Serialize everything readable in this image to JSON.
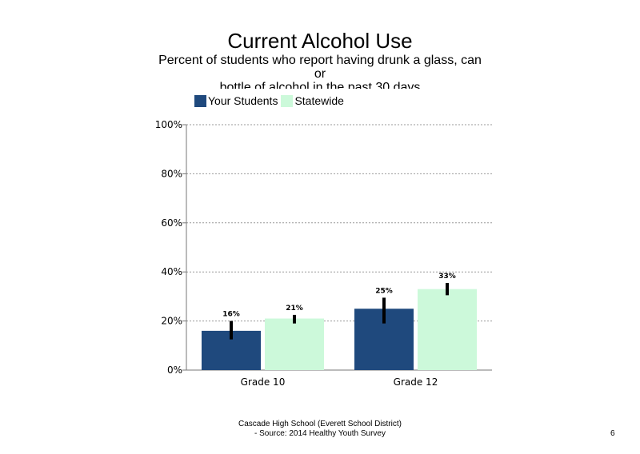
{
  "chart_data": {
    "type": "bar",
    "title": "Current Alcohol Use",
    "subtitle_lines": [
      "Percent of students  who report having drunk a glass, can",
      "or",
      "bottle  of alcohol  in the  past  30 days"
    ],
    "categories": [
      "Grade 10",
      "Grade 12"
    ],
    "series": [
      {
        "name": "Your Students",
        "color": "#1f497d",
        "values": [
          16,
          25
        ],
        "labels": [
          "16%",
          "25%"
        ],
        "error": [
          [
            12.5,
            20
          ],
          [
            19,
            29.5
          ]
        ]
      },
      {
        "name": "Statewide",
        "color": "#ccf9da",
        "values": [
          21,
          33
        ],
        "labels": [
          "21%",
          "33%"
        ],
        "error": [
          [
            19,
            22.5
          ],
          [
            30.5,
            35.5
          ]
        ]
      }
    ],
    "ylim": [
      0,
      100
    ],
    "yticks": [
      "0%",
      "20%",
      "40%",
      "60%",
      "80%",
      "100%"
    ],
    "grid": true,
    "legend": "top"
  },
  "footer": {
    "line1": "Cascade High  School  (Everett School District)",
    "line2": "- Source:  2014  Healthy  Youth Survey"
  },
  "page_number": "6"
}
